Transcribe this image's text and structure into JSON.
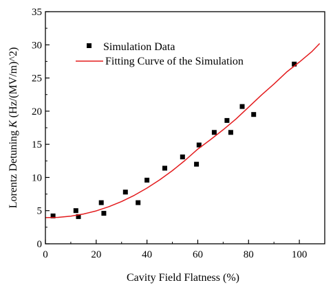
{
  "chart_data": {
    "type": "scatter",
    "xlabel": "Cavity Field Flatness (%)",
    "ylabel_parts": [
      "Lorentz Detuning ",
      "K",
      " (Hz/(MV/m)^2)"
    ],
    "xlim": [
      0,
      110
    ],
    "ylim": [
      0,
      35
    ],
    "xticks": [
      0,
      20,
      40,
      60,
      80,
      100
    ],
    "yticks": [
      0,
      5,
      10,
      15,
      20,
      25,
      30,
      35
    ],
    "legend_position": "top-left",
    "series": [
      {
        "name": "Simulation Data",
        "kind": "scatter",
        "color": "#000000",
        "x": [
          3.0,
          12.0,
          13.0,
          22.0,
          23.0,
          31.5,
          36.5,
          40.0,
          47.0,
          54.0,
          59.5,
          60.5,
          66.5,
          71.5,
          73.0,
          77.5,
          82.0,
          98.0
        ],
        "y": [
          4.2,
          5.0,
          4.1,
          6.2,
          4.6,
          7.8,
          6.2,
          9.6,
          11.4,
          13.1,
          12.0,
          14.9,
          16.8,
          18.6,
          16.8,
          20.7,
          19.5,
          27.1
        ]
      },
      {
        "name": "Fitting Curve of the Simulation",
        "kind": "line",
        "color": "#e31a1c",
        "x": [
          0,
          5,
          10,
          15,
          20,
          25,
          30,
          35,
          40,
          45,
          50,
          55,
          60,
          65,
          70,
          75,
          80,
          85,
          90,
          95,
          100,
          105,
          108
        ],
        "y": [
          3.95,
          3.99,
          4.16,
          4.49,
          4.96,
          5.6,
          6.38,
          7.31,
          8.4,
          9.64,
          11.03,
          12.58,
          14.28,
          15.7,
          17.2,
          18.8,
          20.6,
          22.4,
          24.1,
          25.9,
          27.4,
          29.0,
          30.2
        ]
      }
    ]
  }
}
